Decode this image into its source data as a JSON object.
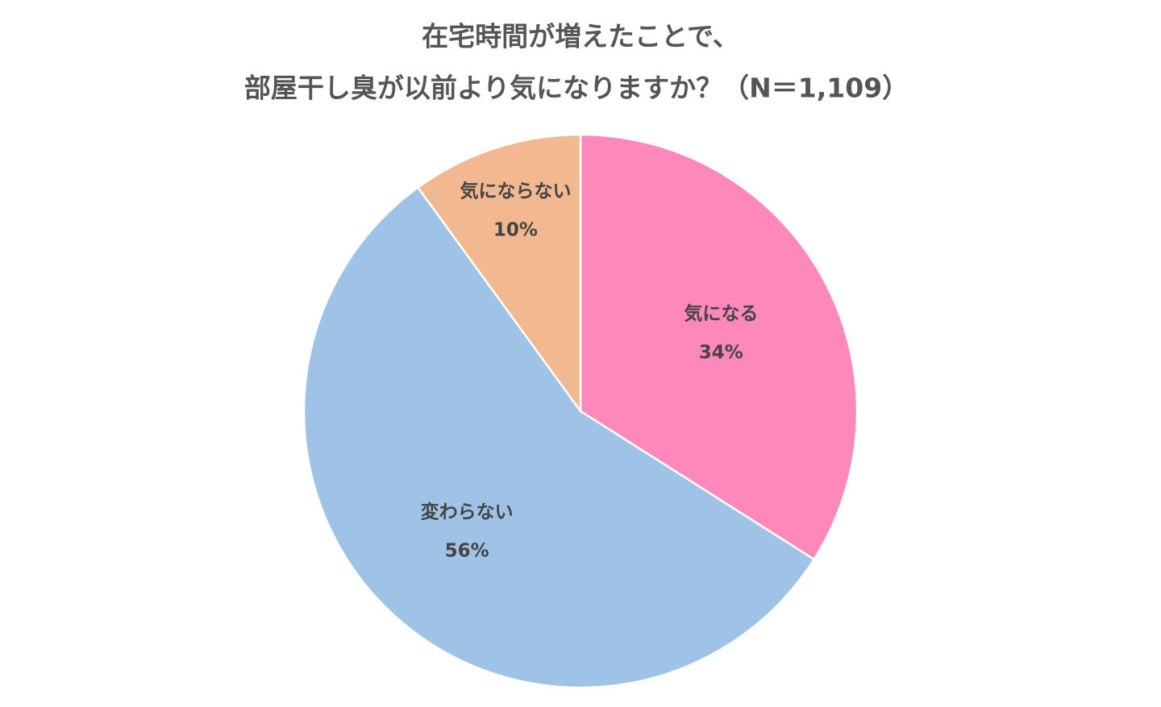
{
  "chart_data": {
    "type": "pie",
    "title": [
      "在宅時間が増えたことで、",
      "部屋干し臭が以前より気になりますか？（N＝1,109）"
    ],
    "categories": [
      "気になる",
      "変わらない",
      "気にならない"
    ],
    "values": [
      34,
      56,
      10
    ],
    "value_labels": [
      "34%",
      "56%",
      "10%"
    ],
    "colors": [
      "#ff88bb",
      "#9fc3e6",
      "#f2b890"
    ]
  }
}
